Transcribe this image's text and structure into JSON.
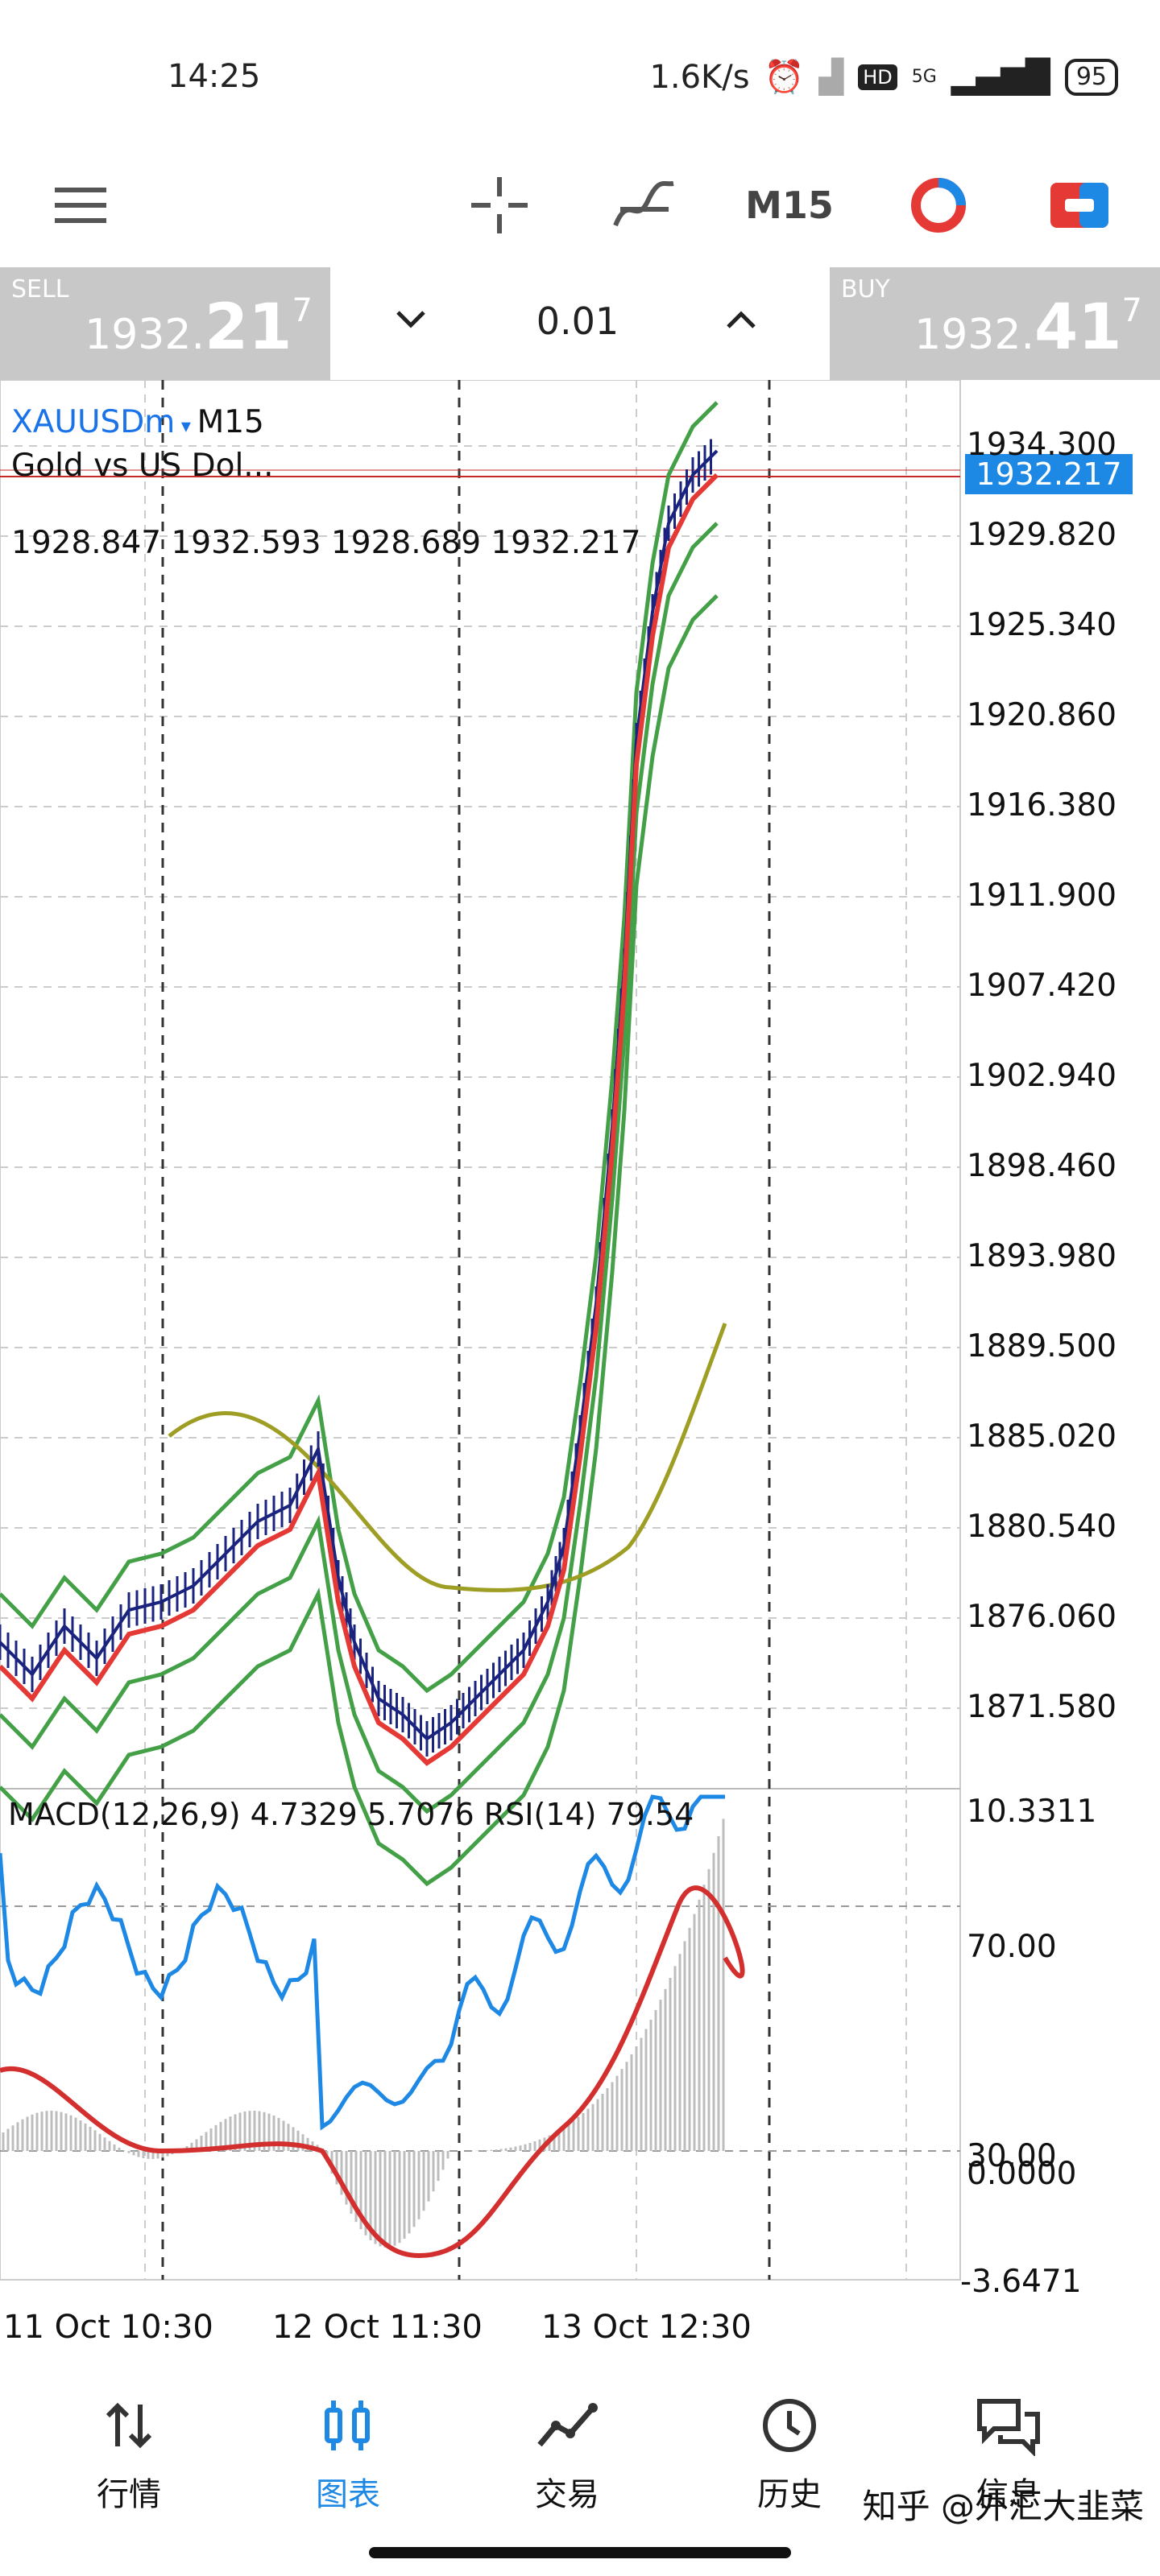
{
  "status_bar": {
    "time": "14:25",
    "net_speed": "1.6K/s",
    "hd": "HD",
    "network": "5G",
    "battery": "95"
  },
  "toolbar": {
    "timeframe": "M15"
  },
  "trade_panel": {
    "sell": {
      "label": "SELL",
      "price_prefix": "1932.",
      "price_big": "21",
      "price_sup": "7"
    },
    "buy": {
      "label": "BUY",
      "price_prefix": "1932.",
      "price_big": "41",
      "price_sup": "7"
    },
    "lot": "0.01",
    "decrease_icon": "chevron-down-icon",
    "increase_icon": "chevron-up-icon"
  },
  "chart": {
    "symbol": "XAUUSDm",
    "timeframe": "M15",
    "description": "Gold vs US Dol...",
    "ohlc": "1928.847 1932.593 1928.689 1932.217",
    "current_price": "1932.217",
    "price_axis": [
      "1934.300",
      "1929.820",
      "1925.340",
      "1920.860",
      "1916.380",
      "1911.900",
      "1907.420",
      "1902.940",
      "1898.460",
      "1893.980",
      "1889.500",
      "1885.020",
      "1880.540",
      "1876.060",
      "1871.580"
    ],
    "indicator_label": "MACD(12,26,9) 4.7329 5.7076 RSI(14) 79.54",
    "indicator_axis": {
      "top": "10.3311",
      "rsi70": "70.00",
      "rsi30": "30.00",
      "zero": "0.0000",
      "bottom": "-3.6471"
    },
    "time_axis": [
      "11 Oct 10:30",
      "12 Oct 11:30",
      "13 Oct 12:30"
    ],
    "colors": {
      "price": "#1a237e",
      "ma_fast": "#e53935",
      "bands": "#43a047",
      "ma_slow": "#9e9d24",
      "rsi": "#1e88e5",
      "signal": "#d32f2f",
      "histogram": "#bdbdbd"
    }
  },
  "bottom_nav": {
    "items": [
      {
        "label": "行情",
        "icon": "quotes-arrows-icon"
      },
      {
        "label": "图表",
        "icon": "chart-candles-icon"
      },
      {
        "label": "交易",
        "icon": "trade-line-icon"
      },
      {
        "label": "历史",
        "icon": "history-clock-icon"
      },
      {
        "label": "信息",
        "icon": "messages-icon"
      }
    ]
  },
  "watermark": "知乎 @外汇大韭菜"
}
